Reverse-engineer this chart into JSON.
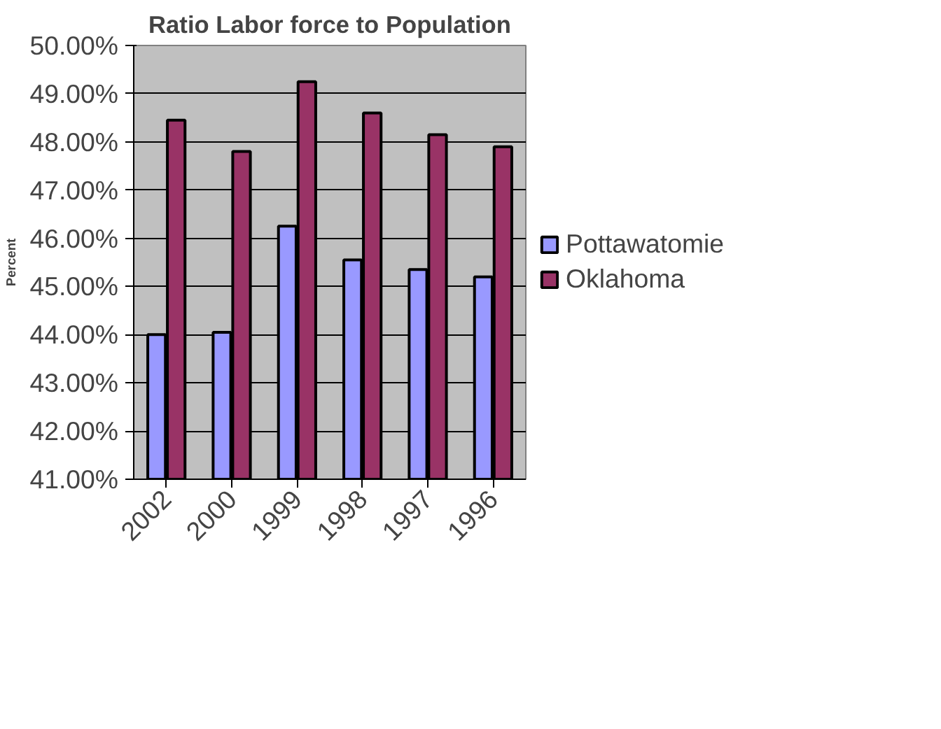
{
  "chart_data": {
    "type": "bar",
    "title": "Ratio Labor force to Population",
    "ylabel": "Percent",
    "categories": [
      "2002",
      "2000",
      "1999",
      "1998",
      "1997",
      "1996"
    ],
    "series": [
      {
        "name": "Pottawatomie",
        "color": "#9999ff",
        "values": [
          44.0,
          44.05,
          46.25,
          45.55,
          45.35,
          45.2
        ]
      },
      {
        "name": "Oklahoma",
        "color": "#993366",
        "values": [
          48.45,
          47.8,
          49.25,
          48.6,
          48.15,
          47.9
        ]
      }
    ],
    "ylim": [
      41,
      50
    ],
    "yticks": [
      {
        "value": 41,
        "label": "41.00%"
      },
      {
        "value": 42,
        "label": "42.00%"
      },
      {
        "value": 43,
        "label": "43.00%"
      },
      {
        "value": 44,
        "label": "44.00%"
      },
      {
        "value": 45,
        "label": "45.00%"
      },
      {
        "value": 46,
        "label": "46.00%"
      },
      {
        "value": 47,
        "label": "47.00%"
      },
      {
        "value": 48,
        "label": "48.00%"
      },
      {
        "value": 49,
        "label": "49.00%"
      },
      {
        "value": 50,
        "label": "50.00%"
      }
    ],
    "grid": "y",
    "legend": "right"
  }
}
